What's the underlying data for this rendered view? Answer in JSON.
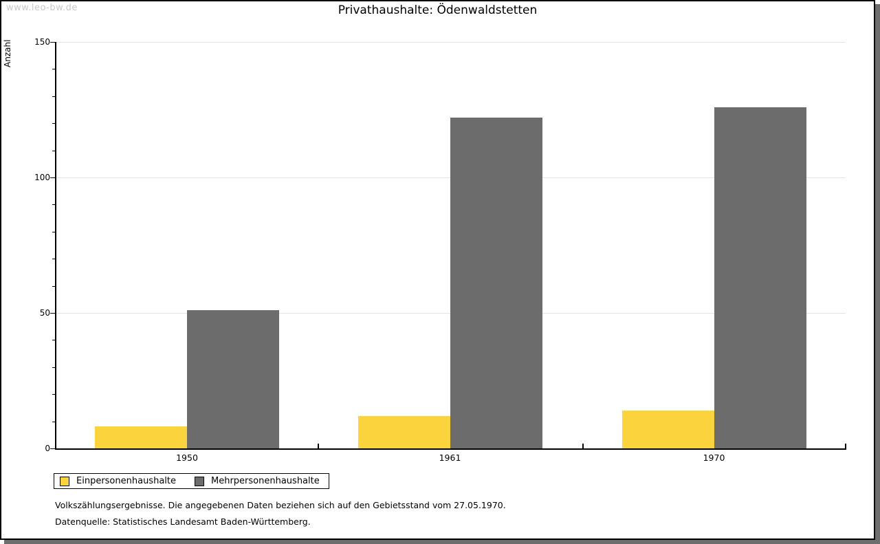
{
  "watermark": "www.leo-bw.de",
  "header": {
    "title": "Privathaushalte: Ödenwaldstetten"
  },
  "axis": {
    "y_label": "Anzahl"
  },
  "legend": {
    "items": [
      {
        "label": "Einpersonenhaushalte",
        "color": "#FBD33C"
      },
      {
        "label": "Mehrpersonenhaushalte",
        "color": "#6C6C6C"
      }
    ]
  },
  "footnotes": {
    "line1": "Volkszählungsergebnisse. Die angegebenen Daten beziehen sich auf den Gebietsstand vom 27.05.1970.",
    "line2": "Datenquelle: Statistisches Landesamt Baden-Württemberg."
  },
  "chart_data": {
    "type": "bar",
    "title": "Privathaushalte: Ödenwaldstetten",
    "categories": [
      "1950",
      "1961",
      "1970"
    ],
    "series": [
      {
        "name": "Einpersonenhaushalte",
        "color": "#FBD33C",
        "values": [
          8,
          12,
          14
        ]
      },
      {
        "name": "Mehrpersonenhaushalte",
        "color": "#6C6C6C",
        "values": [
          51,
          122,
          126
        ]
      }
    ],
    "xlabel": "",
    "ylabel": "Anzahl",
    "ylim": [
      0,
      150
    ],
    "yticks": [
      0,
      50,
      100,
      150
    ],
    "minor_tick_step": 10,
    "grid": true,
    "gridline_color": "#E3E3E3",
    "legend_position": "bottom-left"
  }
}
